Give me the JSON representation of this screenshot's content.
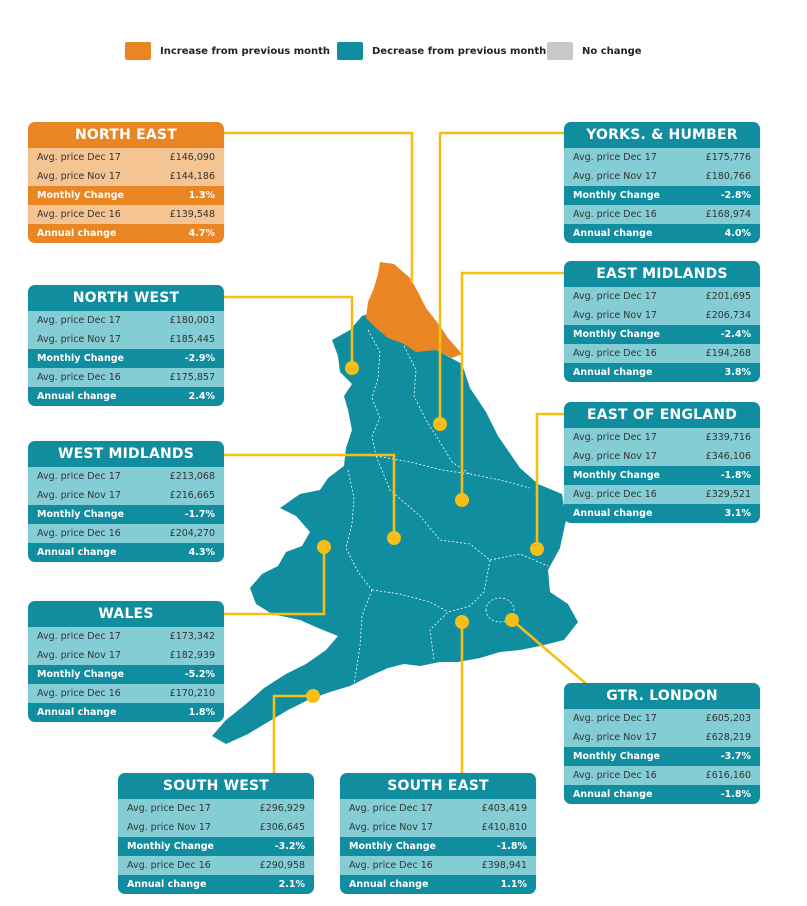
{
  "legend": {
    "items": [
      {
        "label": "Increase from previous month",
        "color": "#ea8523"
      },
      {
        "label": "Decrease from previous month",
        "color": "#108d9f"
      },
      {
        "label": "No change",
        "color": "#c8c8c8"
      }
    ]
  },
  "colors": {
    "increase": "#ea8523",
    "decrease": "#108d9f",
    "no_change": "#c8c8c8",
    "connector": "#f5bf17",
    "region_border": "#ffffff"
  },
  "row_labels": {
    "dec17": "Avg. price Dec 17",
    "nov17": "Avg. price Nov 17",
    "monthly": "Monthly Change",
    "dec16": "Avg. price Dec 16",
    "annual": "Annual change"
  },
  "regions": {
    "north_east": {
      "name": "NORTH EAST",
      "status": "increase",
      "dec17": "£146,090",
      "nov17": "£144,186",
      "monthly": "1.3%",
      "dec16": "£139,548",
      "annual": "4.7%"
    },
    "yorks_humber": {
      "name": "YORKS. & HUMBER",
      "status": "decrease",
      "dec17": "£175,776",
      "nov17": "£180,766",
      "monthly": "-2.8%",
      "dec16": "£168,974",
      "annual": "4.0%"
    },
    "north_west": {
      "name": "NORTH WEST",
      "status": "decrease",
      "dec17": "£180,003",
      "nov17": "£185,445",
      "monthly": "-2.9%",
      "dec16": "£175,857",
      "annual": "2.4%"
    },
    "east_midlands": {
      "name": "EAST MIDLANDS",
      "status": "decrease",
      "dec17": "£201,695",
      "nov17": "£206,734",
      "monthly": "-2.4%",
      "dec16": "£194,268",
      "annual": "3.8%"
    },
    "west_midlands": {
      "name": "WEST MIDLANDS",
      "status": "decrease",
      "dec17": "£213,068",
      "nov17": "£216,665",
      "monthly": "-1.7%",
      "dec16": "£204,270",
      "annual": "4.3%"
    },
    "east_of_england": {
      "name": "EAST OF ENGLAND",
      "status": "decrease",
      "dec17": "£339,716",
      "nov17": "£346,106",
      "monthly": "-1.8%",
      "dec16": "£329,521",
      "annual": "3.1%"
    },
    "wales": {
      "name": "WALES",
      "status": "decrease",
      "dec17": "£173,342",
      "nov17": "£182,939",
      "monthly": "-5.2%",
      "dec16": "£170,210",
      "annual": "1.8%"
    },
    "gtr_london": {
      "name": "GTR. LONDON",
      "status": "decrease",
      "dec17": "£605,203",
      "nov17": "£628,219",
      "monthly": "-3.7%",
      "dec16": "£616,160",
      "annual": "-1.8%"
    },
    "south_west": {
      "name": "SOUTH WEST",
      "status": "decrease",
      "dec17": "£296,929",
      "nov17": "£306,645",
      "monthly": "-3.2%",
      "dec16": "£290,958",
      "annual": "2.1%"
    },
    "south_east": {
      "name": "SOUTH EAST",
      "status": "decrease",
      "dec17": "£403,419",
      "nov17": "£410,810",
      "monthly": "-1.8%",
      "dec16": "£398,941",
      "annual": "1.1%"
    }
  }
}
